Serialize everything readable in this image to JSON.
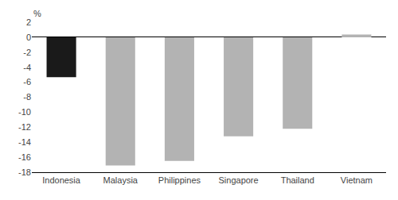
{
  "chart_data": {
    "type": "bar",
    "categories": [
      "Indonesia",
      "Malaysia",
      "Philippines",
      "Singapore",
      "Thailand",
      "Vietnam"
    ],
    "values": [
      -5.32,
      -17.1,
      -16.5,
      -13.2,
      -12.2,
      0.36
    ],
    "colors": [
      "#1a1a1a",
      "#b3b3b3",
      "#b3b3b3",
      "#b3b3b3",
      "#b3b3b3",
      "#b3b3b3"
    ],
    "ylabel": "%",
    "ylim": [
      -18,
      2
    ],
    "yticks": [
      2,
      0,
      -2,
      -4,
      -6,
      -8,
      -10,
      -12,
      -14,
      -16,
      -18
    ],
    "grid": false
  }
}
